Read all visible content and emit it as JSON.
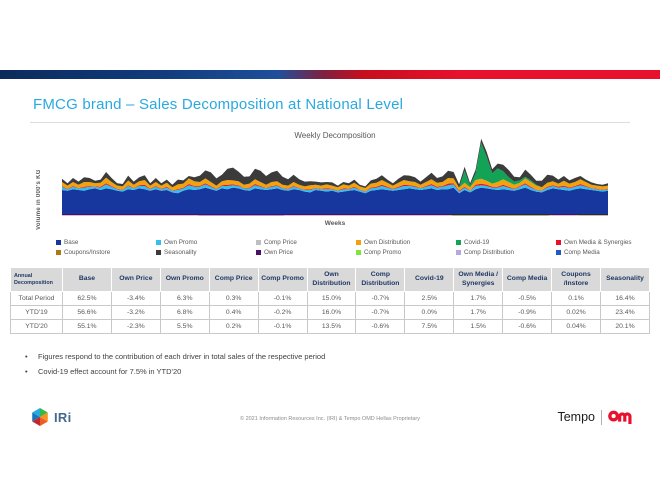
{
  "slide": {
    "title": "FMCG brand – Sales Decomposition at National Level",
    "bullets": [
      "Figures respond to the contribution of each driver in total sales of the respective period",
      "Covid-19 effect account for 7.5% in YTD'20"
    ],
    "footer": {
      "copyright": "© 2021 Information Resources Inc. (IRI) & Tempo OMD Hellas Proprietary",
      "iri_text": "IRi",
      "tempo_text": "Tempo"
    },
    "colors": {
      "title_accent": "#29A9E1",
      "bar_gradient_left": "#0B2B5C",
      "bar_gradient_right": "#E8112D",
      "table_header_text": "#1F3864",
      "table_header_bg": "#D9D9D9"
    }
  },
  "chart_data": {
    "type": "area",
    "stacked": true,
    "title": "Weekly Decomposition",
    "xlabel": "Weeks",
    "ylabel": "Volume in 000's KG",
    "x_weeks": 100,
    "ylim": [
      -5,
      100
    ],
    "grid": false,
    "legend_position": "bottom",
    "legend": [
      {
        "label": "Base",
        "color": "#17379E"
      },
      {
        "label": "Own Promo",
        "color": "#33BEED"
      },
      {
        "label": "Comp Price",
        "color": "#BFBFBF"
      },
      {
        "label": "Own Distribution",
        "color": "#F2A20D"
      },
      {
        "label": "Covid-19",
        "color": "#12A356"
      },
      {
        "label": "Own Media & Synergies",
        "color": "#E8112D"
      },
      {
        "label": "Coupons/Instore",
        "color": "#B07712"
      },
      {
        "label": "Seasonality",
        "color": "#3B3B3B"
      },
      {
        "label": "Own Price",
        "color": "#4C0F63"
      },
      {
        "label": "Comp Promo",
        "color": "#7EE53C"
      },
      {
        "label": "Comp Distribution",
        "color": "#B4A7E5"
      },
      {
        "label": "Comp Media",
        "color": "#1F59C7"
      }
    ],
    "series": [
      {
        "key": "base",
        "name": "Base",
        "color": "#17379E",
        "values": [
          30,
          29,
          31,
          30,
          29,
          31,
          32,
          30,
          32,
          31,
          29,
          28,
          31,
          30,
          32,
          31,
          29,
          31,
          29,
          30,
          27,
          26,
          29,
          31,
          30,
          31,
          33,
          31,
          29,
          32,
          31,
          33,
          32,
          30,
          29,
          32,
          31,
          30,
          31,
          32,
          30,
          29,
          31,
          30,
          28,
          27,
          30,
          29,
          28,
          29,
          27,
          28,
          29,
          30,
          28,
          26,
          29,
          30,
          31,
          30,
          29,
          30,
          31,
          32,
          31,
          30,
          31,
          32,
          30,
          31,
          31,
          33,
          26,
          30,
          27,
          31,
          33,
          32,
          31,
          30,
          31,
          30,
          29,
          31,
          33,
          30,
          28,
          27,
          30,
          32,
          31,
          30,
          29,
          31,
          32,
          31,
          30,
          29,
          28,
          29
        ]
      },
      {
        "key": "own-promo",
        "name": "Own Promo",
        "color": "#33BEED",
        "values": [
          4,
          2,
          3,
          2,
          4,
          3,
          2,
          3,
          5,
          3,
          2,
          2,
          4,
          2,
          3,
          4,
          2,
          3,
          2,
          3,
          2,
          4,
          3,
          5,
          4,
          3,
          4,
          3,
          2,
          3,
          4,
          3,
          3,
          2,
          3,
          4,
          3,
          2,
          3,
          3,
          2,
          2,
          3,
          2,
          2,
          3,
          2,
          2,
          3,
          2,
          2,
          3,
          2,
          3,
          2,
          2,
          3,
          3,
          4,
          3,
          2,
          3,
          4,
          3,
          3,
          2,
          3,
          4,
          3,
          3,
          5,
          4,
          2,
          3,
          2,
          4,
          3,
          3,
          2,
          3,
          4,
          3,
          2,
          3,
          4,
          3,
          2,
          2,
          3,
          3,
          2,
          4,
          3,
          3,
          4,
          3,
          2,
          2,
          2,
          2
        ]
      },
      {
        "key": "own-media",
        "name": "Own Media & Synergies",
        "color": "#E8112D",
        "values": [
          1,
          0.5,
          1,
          0.5,
          1,
          1,
          0.5,
          1,
          1.5,
          1,
          0.5,
          0.5,
          1,
          0.5,
          1,
          1.5,
          0.5,
          1,
          0.5,
          1,
          0.5,
          1,
          1,
          1.5,
          1,
          1,
          1.5,
          1,
          0.5,
          1,
          1.5,
          1,
          1,
          0.5,
          1,
          1.5,
          1,
          0.5,
          1,
          1,
          0.5,
          0.5,
          1,
          0.5,
          0.5,
          1,
          0.5,
          0.5,
          1,
          0.5,
          0.5,
          1,
          0.5,
          1,
          0.5,
          0.5,
          1,
          1,
          1.5,
          1,
          0.5,
          1,
          1.5,
          1,
          1,
          0.5,
          1,
          1.5,
          1,
          1,
          2,
          1.5,
          1,
          1,
          0.5,
          1.5,
          2,
          1.5,
          1,
          1,
          1.5,
          1,
          0.5,
          1,
          1.5,
          1,
          0.5,
          0.5,
          1,
          1,
          1,
          1.5,
          1,
          1,
          1.5,
          1,
          0.5,
          0.5,
          0.5,
          0.5
        ]
      },
      {
        "key": "own-distribution",
        "name": "Own Distribution",
        "color": "#F2A20D",
        "values": [
          5,
          4,
          5,
          4,
          6,
          5,
          4,
          5,
          7,
          5,
          4,
          4,
          6,
          4,
          5,
          6,
          4,
          5,
          4,
          5,
          4,
          6,
          5,
          7,
          6,
          5,
          6,
          5,
          4,
          5,
          6,
          5,
          5,
          4,
          5,
          6,
          5,
          4,
          5,
          5,
          4,
          4,
          5,
          4,
          4,
          5,
          4,
          4,
          5,
          4,
          4,
          5,
          4,
          5,
          4,
          4,
          5,
          5,
          6,
          5,
          4,
          5,
          6,
          5,
          5,
          4,
          5,
          6,
          5,
          5,
          7,
          6,
          4,
          5,
          4,
          6,
          6,
          5,
          4,
          6,
          7,
          6,
          5,
          4,
          6,
          6,
          5,
          4,
          5,
          5,
          4,
          6,
          5,
          5,
          6,
          5,
          4,
          4,
          4,
          4
        ]
      },
      {
        "key": "covid-19",
        "name": "Covid-19",
        "color": "#12A356",
        "values": [
          0,
          0,
          0,
          0,
          0,
          0,
          0,
          0,
          0,
          0,
          0,
          0,
          0,
          0,
          0,
          0,
          0,
          0,
          0,
          0,
          0,
          0,
          0,
          0,
          0,
          0,
          0,
          0,
          0,
          0,
          0,
          0,
          0,
          0,
          0,
          0,
          0,
          0,
          0,
          0,
          0,
          0,
          0,
          0,
          0,
          0,
          0,
          0,
          0,
          0,
          0,
          0,
          0,
          0,
          0,
          0,
          0,
          0,
          0,
          0,
          0,
          0,
          0,
          0,
          0,
          0,
          0,
          0,
          0,
          0,
          0,
          0,
          0,
          15,
          2,
          8,
          45,
          30,
          13,
          17,
          10,
          6,
          4,
          3,
          2,
          2,
          1,
          0,
          0,
          0,
          0,
          0,
          0,
          0,
          0,
          0,
          0,
          0,
          0,
          0
        ]
      },
      {
        "key": "seasonality",
        "name": "Seasonality",
        "color": "#3B3B3B",
        "values": [
          4,
          3,
          5,
          4,
          6,
          5,
          3,
          4,
          7,
          5,
          3,
          3,
          6,
          4,
          5,
          6,
          3,
          5,
          3,
          4,
          3,
          6,
          4,
          3,
          5,
          8,
          10,
          12,
          9,
          8,
          14,
          16,
          12,
          10,
          9,
          13,
          14,
          11,
          12,
          13,
          10,
          8,
          9,
          7,
          6,
          5,
          4,
          4,
          3,
          4,
          2,
          3,
          3,
          4,
          2,
          2,
          4,
          5,
          6,
          4,
          3,
          5,
          6,
          7,
          6,
          4,
          6,
          8,
          6,
          7,
          9,
          8,
          4,
          5,
          3,
          5,
          5,
          6,
          5,
          6,
          8,
          9,
          6,
          4,
          9,
          7,
          5,
          8,
          10,
          7,
          5,
          6,
          4,
          5,
          4,
          3,
          3,
          2,
          2,
          3
        ]
      },
      {
        "key": "comp-price",
        "name": "Comp Price",
        "color": "#BFBFBF",
        "const": 0
      },
      {
        "key": "coupons-instore",
        "name": "Coupons/Instore",
        "color": "#B07712",
        "const": 0
      },
      {
        "key": "comp-media",
        "name": "Comp Media",
        "color": "#1F59C7",
        "const": 0
      },
      {
        "key": "own-price",
        "name": "Own Price",
        "color": "#4C0F63",
        "const": -1.5
      },
      {
        "key": "comp-distribution",
        "name": "Comp Distribution",
        "color": "#B4A7E5",
        "values": [
          0,
          0,
          0,
          0,
          0,
          0,
          0,
          0,
          0,
          0,
          0,
          0,
          0,
          0,
          0,
          0,
          0,
          0,
          0,
          0,
          0,
          0,
          0,
          0,
          0,
          -1,
          -1,
          -1,
          -1,
          -1,
          -1,
          -1,
          -1,
          -1,
          -1,
          -1,
          -1,
          -1,
          -1,
          -1,
          -1,
          0,
          0,
          0,
          0,
          0,
          0,
          0,
          0,
          0,
          0,
          0,
          0,
          0,
          0,
          0,
          0,
          0,
          0,
          0,
          0,
          0,
          0,
          0,
          0,
          0,
          0,
          0,
          0,
          0,
          0,
          0,
          0,
          0,
          0,
          0,
          0,
          0,
          0,
          0,
          0,
          0,
          0,
          0,
          0,
          0,
          0,
          0,
          0,
          0,
          0,
          0,
          0,
          0,
          0,
          0,
          0,
          0,
          0,
          0
        ]
      },
      {
        "key": "comp-promo",
        "name": "Comp Promo",
        "color": "#7EE53C",
        "values": [
          0,
          0,
          0,
          0,
          0,
          0,
          0,
          0,
          0,
          0,
          0,
          0,
          0,
          0,
          0,
          0,
          0,
          0,
          0,
          0,
          0,
          0,
          0,
          0,
          0,
          0,
          0,
          0,
          0,
          0,
          0,
          0,
          0,
          0,
          0,
          0,
          0,
          0,
          0,
          0,
          0,
          0,
          0,
          0,
          0,
          0,
          0,
          0,
          0,
          0,
          0,
          0,
          0,
          0,
          0,
          0,
          0,
          0,
          0,
          0,
          0,
          0,
          0,
          0,
          0,
          0,
          0,
          0,
          0,
          0,
          0,
          -1,
          -1,
          -1,
          -1,
          -1,
          -1,
          -1,
          -1,
          -1,
          -1,
          -1,
          -1,
          -1,
          -1,
          -1,
          -1,
          -1,
          -1,
          0,
          0,
          0,
          0,
          0,
          -0.8,
          -0.8,
          -0.8,
          -0.8,
          -0.8,
          -0.8
        ]
      }
    ]
  },
  "table": {
    "corner_label": "Annual Decomposition",
    "header": [
      "Base",
      "Own Price",
      "Own Promo",
      "Comp Price",
      "Comp Promo",
      "Own Distribution",
      "Comp Distribution",
      "Covid-19",
      "Own Media / Synergies",
      "Comp Media",
      "Coupons /Instore",
      "Seasonality"
    ],
    "rows": [
      {
        "label": "Total Period",
        "values": [
          "62.5%",
          "-3.4%",
          "6.3%",
          "0.3%",
          "-0.1%",
          "15.0%",
          "-0.7%",
          "2.5%",
          "1.7%",
          "-0.5%",
          "0.1%",
          "16.4%"
        ]
      },
      {
        "label": "YTD'19",
        "values": [
          "56.6%",
          "-3.2%",
          "6.8%",
          "0.4%",
          "-0.2%",
          "16.0%",
          "-0.7%",
          "0.0%",
          "1.7%",
          "-0.9%",
          "0.02%",
          "23.4%"
        ]
      },
      {
        "label": "YTD'20",
        "values": [
          "55.1%",
          "-2.3%",
          "5.5%",
          "0.2%",
          "-0.1%",
          "13.5%",
          "-0.6%",
          "7.5%",
          "1.5%",
          "-0.6%",
          "0.04%",
          "20.1%"
        ]
      }
    ]
  }
}
